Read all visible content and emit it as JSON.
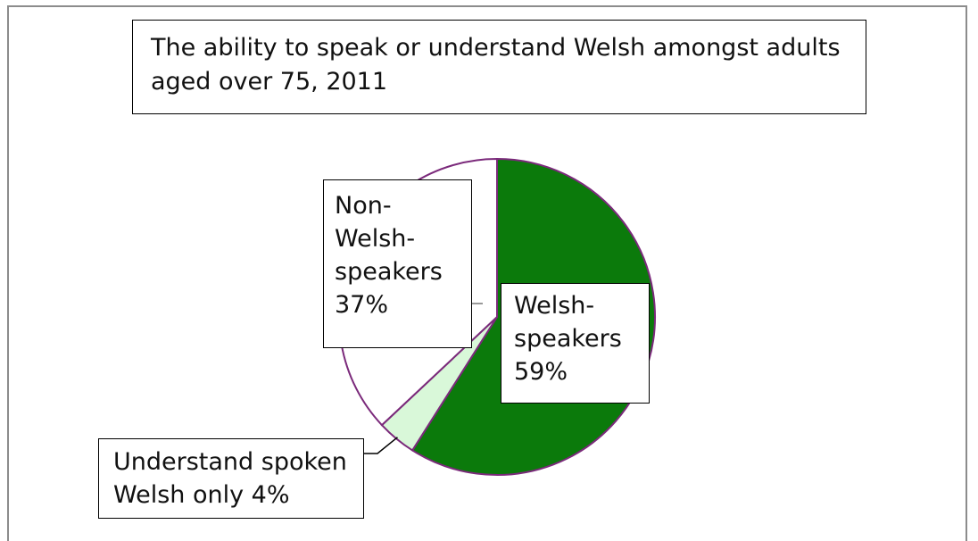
{
  "chart_data": {
    "type": "pie",
    "title": "The ability to speak or understand Welsh amongst adults aged over 75, 2011",
    "slices": [
      {
        "key": "welsh",
        "label_lines": [
          "Welsh-",
          "speakers",
          "59%"
        ],
        "value": 59,
        "color": "#0b7a0b"
      },
      {
        "key": "understand",
        "label_lines": [
          "Understand spoken",
          "Welsh only 4%"
        ],
        "value": 4,
        "color": "#d9f8d9"
      },
      {
        "key": "non",
        "label_lines": [
          "Non-",
          "Welsh-",
          "speakers",
          "37%"
        ],
        "value": 37,
        "color": "#ffffff"
      }
    ],
    "legend": "none",
    "outline_color": "#7b2a7b"
  }
}
